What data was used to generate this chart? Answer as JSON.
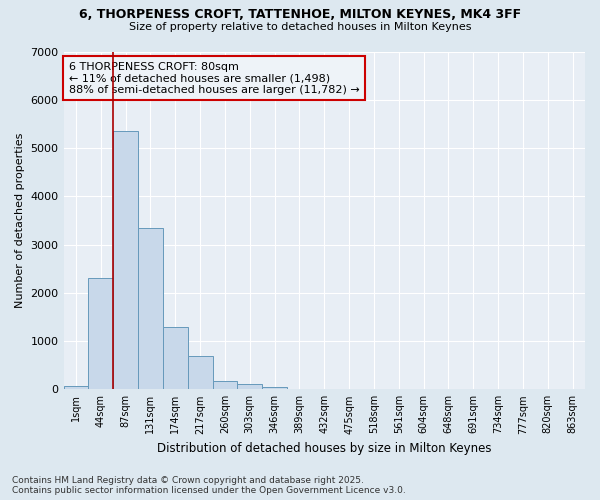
{
  "title": "6, THORPENESS CROFT, TATTENHOE, MILTON KEYNES, MK4 3FF",
  "subtitle": "Size of property relative to detached houses in Milton Keynes",
  "xlabel": "Distribution of detached houses by size in Milton Keynes",
  "ylabel": "Number of detached properties",
  "categories": [
    "1sqm",
    "44sqm",
    "87sqm",
    "131sqm",
    "174sqm",
    "217sqm",
    "260sqm",
    "303sqm",
    "346sqm",
    "389sqm",
    "432sqm",
    "475sqm",
    "518sqm",
    "561sqm",
    "604sqm",
    "648sqm",
    "691sqm",
    "734sqm",
    "777sqm",
    "820sqm",
    "863sqm"
  ],
  "values": [
    60,
    2300,
    5350,
    3350,
    1300,
    680,
    180,
    100,
    50,
    10,
    5,
    2,
    1,
    0,
    0,
    0,
    0,
    0,
    0,
    0,
    0
  ],
  "bar_color": "#c8d8ea",
  "bar_edge_color": "#6699bb",
  "ylim": [
    0,
    7000
  ],
  "yticks": [
    0,
    1000,
    2000,
    3000,
    4000,
    5000,
    6000,
    7000
  ],
  "vline_x": 1.5,
  "vline_color": "#aa0000",
  "annotation_text": "6 THORPENESS CROFT: 80sqm\n← 11% of detached houses are smaller (1,498)\n88% of semi-detached houses are larger (11,782) →",
  "annotation_box_facecolor": "#eef3f8",
  "annotation_box_edgecolor": "#cc0000",
  "background_color": "#dde8f0",
  "plot_bg_color": "#e8eef5",
  "grid_color": "#ffffff",
  "footer_text": "Contains HM Land Registry data © Crown copyright and database right 2025.\nContains public sector information licensed under the Open Government Licence v3.0."
}
